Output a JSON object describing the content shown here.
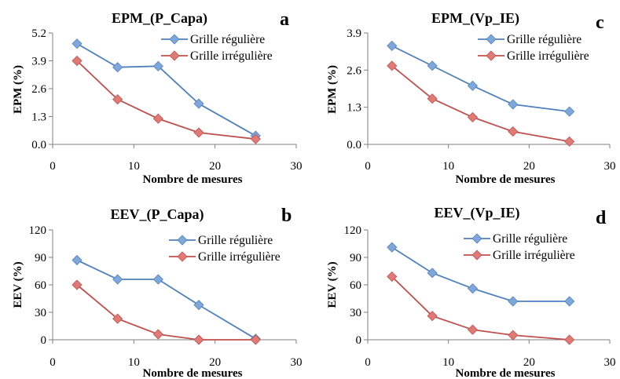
{
  "colors": {
    "regular_line": "#4f81bd",
    "regular_marker": "#7fa7da",
    "irregular_line": "#c0504d",
    "irregular_marker": "#e07a77"
  },
  "chart_data": [
    {
      "type": "line",
      "letter": "a",
      "title": "EPM_(P_Capa)",
      "xlabel": "Nombre de mesures",
      "ylabel": "EPM (%)",
      "xlim": [
        0,
        30
      ],
      "ylim": [
        0,
        5.2
      ],
      "xticks": [
        "0",
        "10",
        "20",
        "30"
      ],
      "yticks": [
        "0.0",
        "1.3",
        "2.6",
        "3.9",
        "5.2"
      ],
      "legend_position": "top-right",
      "series": [
        {
          "name": "Grille régulière",
          "x": [
            3,
            8,
            13,
            18,
            25
          ],
          "values": [
            4.7,
            3.6,
            3.65,
            1.9,
            0.4
          ]
        },
        {
          "name": "Grille irrégulière",
          "x": [
            3,
            8,
            13,
            18,
            25
          ],
          "values": [
            3.9,
            2.1,
            1.2,
            0.55,
            0.25
          ]
        }
      ]
    },
    {
      "type": "line",
      "letter": "c",
      "title": "EPM_(Vp_IE)",
      "xlabel": "Nombre de mesures",
      "ylabel": "EPM (%)",
      "xlim": [
        0,
        30
      ],
      "ylim": [
        0,
        3.9
      ],
      "xticks": [
        "0",
        "10",
        "20",
        "30"
      ],
      "yticks": [
        "0.0",
        "1.3",
        "2.6",
        "3.9"
      ],
      "legend_position": "top-right",
      "series": [
        {
          "name": "Grille régulière",
          "x": [
            3,
            8,
            13,
            18,
            25
          ],
          "values": [
            3.45,
            2.75,
            2.05,
            1.4,
            1.15
          ]
        },
        {
          "name": "Grille irrégulière",
          "x": [
            3,
            8,
            13,
            18,
            25
          ],
          "values": [
            2.75,
            1.6,
            0.95,
            0.45,
            0.1
          ]
        }
      ]
    },
    {
      "type": "line",
      "letter": "b",
      "title": "EEV_(P_Capa)",
      "xlabel": "Nombre de mesures",
      "ylabel": "EEV (%)",
      "xlim": [
        0,
        30
      ],
      "ylim": [
        0,
        120
      ],
      "xticks": [
        "0",
        "10",
        "20",
        "30"
      ],
      "yticks": [
        "0",
        "30",
        "60",
        "90",
        "120"
      ],
      "legend_position": "top-right",
      "series": [
        {
          "name": "Grille régulière",
          "x": [
            3,
            8,
            13,
            18,
            25
          ],
          "values": [
            87,
            66,
            66,
            38,
            1
          ]
        },
        {
          "name": "Grille irrégulière",
          "x": [
            3,
            8,
            13,
            18,
            25
          ],
          "values": [
            60,
            23,
            6,
            0,
            0
          ]
        }
      ]
    },
    {
      "type": "line",
      "letter": "d",
      "title": "EEV_(Vp_IE)",
      "xlabel": "Nombre de mesures",
      "ylabel": "EEV (%)",
      "xlim": [
        0,
        30
      ],
      "ylim": [
        0,
        120
      ],
      "xticks": [
        "0",
        "10",
        "20",
        "30"
      ],
      "yticks": [
        "0",
        "30",
        "60",
        "90",
        "120"
      ],
      "legend_position": "top-right",
      "series": [
        {
          "name": "Grille régulière",
          "x": [
            3,
            8,
            13,
            18,
            25
          ],
          "values": [
            101,
            73,
            56,
            42,
            42
          ]
        },
        {
          "name": "Grille irrégulière",
          "x": [
            3,
            8,
            13,
            18,
            25
          ],
          "values": [
            69,
            26,
            11,
            5,
            0
          ]
        }
      ]
    }
  ]
}
